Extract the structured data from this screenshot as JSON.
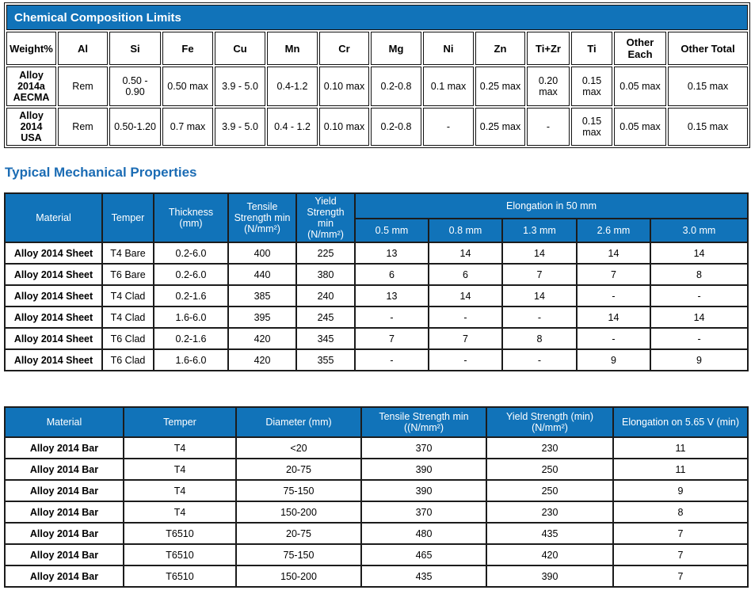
{
  "colors": {
    "header_blue": "#1173b9",
    "heading_text": "#1b6cb4",
    "border": "#1c1c1c"
  },
  "chem_table": {
    "title": "Chemical Composition Limits",
    "columns": [
      "Weight%",
      "Al",
      "Si",
      "Fe",
      "Cu",
      "Mn",
      "Cr",
      "Mg",
      "Ni",
      "Zn",
      "Ti+Zr",
      "Ti",
      "Other Each",
      "Other Total"
    ],
    "rows": [
      {
        "name": "Alloy 2014a AECMA",
        "values": [
          "Rem",
          "0.50 - 0.90",
          "0.50 max",
          "3.9 - 5.0",
          "0.4-1.2",
          "0.10 max",
          "0.2-0.8",
          "0.1 max",
          "0.25 max",
          "0.20 max",
          "0.15 max",
          "0.05 max",
          "0.15 max"
        ]
      },
      {
        "name": "Alloy 2014 USA",
        "values": [
          "Rem",
          "0.50-1.20",
          "0.7 max",
          "3.9 - 5.0",
          "0.4 - 1.2",
          "0.10 max",
          "0.2-0.8",
          "-",
          "0.25 max",
          "-",
          "0.15 max",
          "0.05 max",
          "0.15 max"
        ]
      }
    ]
  },
  "mechanical_heading": "Typical Mechanical Properties",
  "sheet_table": {
    "columns": [
      "Material",
      "Temper",
      "Thickness (mm)",
      "Tensile Strength min (N/mm²)",
      "Yield Strength min (N/mm²)"
    ],
    "elongation_group_label": "Elongation in 50 mm",
    "elongation_columns": [
      "0.5 mm",
      "0.8 mm",
      "1.3 mm",
      "2.6 mm",
      "3.0 mm"
    ],
    "rows": [
      [
        "Alloy 2014 Sheet",
        "T4 Bare",
        "0.2-6.0",
        "400",
        "225",
        "13",
        "14",
        "14",
        "14",
        "14"
      ],
      [
        "Alloy 2014 Sheet",
        "T6 Bare",
        "0.2-6.0",
        "440",
        "380",
        "6",
        "6",
        "7",
        "7",
        "8"
      ],
      [
        "Alloy 2014 Sheet",
        "T4 Clad",
        "0.2-1.6",
        "385",
        "240",
        "13",
        "14",
        "14",
        "-",
        "-"
      ],
      [
        "Alloy 2014 Sheet",
        "T4 Clad",
        "1.6-6.0",
        "395",
        "245",
        "-",
        "-",
        "-",
        "14",
        "14"
      ],
      [
        "Alloy 2014 Sheet",
        "T6 Clad",
        "0.2-1.6",
        "420",
        "345",
        "7",
        "7",
        "8",
        "-",
        "-"
      ],
      [
        "Alloy 2014 Sheet",
        "T6 Clad",
        "1.6-6.0",
        "420",
        "355",
        "-",
        "-",
        "-",
        "9",
        "9"
      ]
    ]
  },
  "bar_table": {
    "columns": [
      "Material",
      "Temper",
      "Diameter (mm)",
      "Tensile Strength min ((N/mm²)",
      "Yield Strength (min) (N/mm²)",
      "Elongation on 5.65 V (min)"
    ],
    "rows": [
      [
        "Alloy 2014 Bar",
        "T4",
        "<20",
        "370",
        "230",
        "11"
      ],
      [
        "Alloy 2014 Bar",
        "T4",
        "20-75",
        "390",
        "250",
        "11"
      ],
      [
        "Alloy 2014 Bar",
        "T4",
        "75-150",
        "390",
        "250",
        "9"
      ],
      [
        "Alloy 2014 Bar",
        "T4",
        "150-200",
        "370",
        "230",
        "8"
      ],
      [
        "Alloy 2014 Bar",
        "T6510",
        "20-75",
        "480",
        "435",
        "7"
      ],
      [
        "Alloy 2014 Bar",
        "T6510",
        "75-150",
        "465",
        "420",
        "7"
      ],
      [
        "Alloy 2014 Bar",
        "T6510",
        "150-200",
        "435",
        "390",
        "7"
      ]
    ]
  }
}
